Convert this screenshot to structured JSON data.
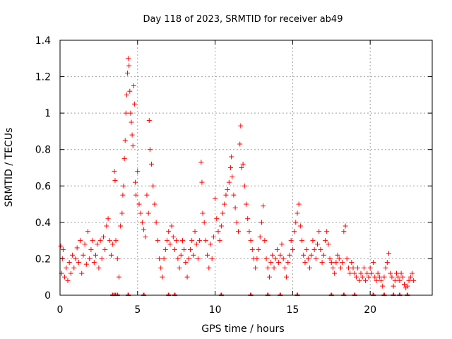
{
  "chart_data": {
    "type": "scatter",
    "title": "Day 118 of 2023, SRMTID for receiver ab49",
    "xlabel": "GPS time / hours",
    "ylabel": "SRMTID / TECUs",
    "xlim": [
      0,
      24
    ],
    "ylim": [
      0,
      1.4
    ],
    "grid": true,
    "marker": "+",
    "color": "#ff0000",
    "x_ticks": [
      0,
      5,
      10,
      15,
      20
    ],
    "x_tick_labels": [
      "0",
      "5",
      "10",
      "15",
      "20"
    ],
    "y_ticks": [
      0,
      0.2,
      0.4,
      0.6,
      0.8,
      1.0,
      1.2,
      1.4
    ],
    "y_tick_labels": [
      "0",
      "0.2",
      "0.4",
      "0.6",
      "0.8",
      "1",
      "1.2",
      "1.4"
    ],
    "series": [
      {
        "name": "SRMTID",
        "points": [
          [
            0.05,
            0.27
          ],
          [
            0.1,
            0.12
          ],
          [
            0.15,
            0.2
          ],
          [
            0.2,
            0.25
          ],
          [
            0.3,
            0.1
          ],
          [
            0.4,
            0.15
          ],
          [
            0.5,
            0.08
          ],
          [
            0.6,
            0.18
          ],
          [
            0.7,
            0.12
          ],
          [
            0.8,
            0.22
          ],
          [
            0.9,
            0.15
          ],
          [
            1.0,
            0.2
          ],
          [
            1.1,
            0.26
          ],
          [
            1.2,
            0.18
          ],
          [
            1.3,
            0.3
          ],
          [
            1.4,
            0.12
          ],
          [
            1.5,
            0.22
          ],
          [
            1.6,
            0.28
          ],
          [
            1.7,
            0.17
          ],
          [
            1.8,
            0.35
          ],
          [
            1.9,
            0.2
          ],
          [
            2.0,
            0.25
          ],
          [
            2.1,
            0.3
          ],
          [
            2.2,
            0.18
          ],
          [
            2.3,
            0.22
          ],
          [
            2.4,
            0.28
          ],
          [
            2.5,
            0.15
          ],
          [
            2.6,
            0.3
          ],
          [
            2.7,
            0.2
          ],
          [
            2.8,
            0.32
          ],
          [
            2.9,
            0.25
          ],
          [
            3.0,
            0.38
          ],
          [
            3.1,
            0.42
          ],
          [
            3.2,
            0.3
          ],
          [
            3.3,
            0.22
          ],
          [
            3.4,
            0.28
          ],
          [
            3.5,
            0.68
          ],
          [
            3.55,
            0.63
          ],
          [
            3.6,
            0.3
          ],
          [
            3.7,
            0.2
          ],
          [
            3.8,
            0.1
          ],
          [
            3.9,
            0.38
          ],
          [
            4.0,
            0.45
          ],
          [
            4.05,
            0.55
          ],
          [
            4.1,
            0.6
          ],
          [
            4.15,
            0.75
          ],
          [
            4.2,
            0.85
          ],
          [
            4.25,
            1.0
          ],
          [
            4.3,
            1.1
          ],
          [
            4.35,
            1.22
          ],
          [
            4.4,
            1.3
          ],
          [
            4.45,
            1.26
          ],
          [
            4.5,
            1.12
          ],
          [
            4.55,
            1.0
          ],
          [
            4.6,
            0.95
          ],
          [
            4.65,
            0.88
          ],
          [
            4.7,
            0.82
          ],
          [
            4.75,
            1.15
          ],
          [
            4.8,
            1.05
          ],
          [
            4.85,
            0.62
          ],
          [
            4.9,
            0.55
          ],
          [
            5.0,
            0.68
          ],
          [
            5.1,
            0.5
          ],
          [
            5.2,
            0.45
          ],
          [
            5.3,
            0.4
          ],
          [
            5.4,
            0.36
          ],
          [
            5.5,
            0.32
          ],
          [
            5.6,
            0.55
          ],
          [
            5.7,
            0.45
          ],
          [
            5.75,
            0.96
          ],
          [
            5.8,
            0.8
          ],
          [
            5.9,
            0.72
          ],
          [
            6.0,
            0.6
          ],
          [
            6.1,
            0.5
          ],
          [
            6.2,
            0.4
          ],
          [
            6.3,
            0.3
          ],
          [
            6.4,
            0.2
          ],
          [
            6.5,
            0.15
          ],
          [
            6.6,
            0.1
          ],
          [
            6.7,
            0.2
          ],
          [
            6.8,
            0.25
          ],
          [
            6.9,
            0.3
          ],
          [
            7.0,
            0.35
          ],
          [
            7.1,
            0.28
          ],
          [
            7.2,
            0.38
          ],
          [
            7.3,
            0.32
          ],
          [
            7.4,
            0.25
          ],
          [
            7.5,
            0.3
          ],
          [
            7.6,
            0.2
          ],
          [
            7.7,
            0.15
          ],
          [
            7.8,
            0.22
          ],
          [
            7.9,
            0.3
          ],
          [
            8.0,
            0.25
          ],
          [
            8.1,
            0.18
          ],
          [
            8.2,
            0.1
          ],
          [
            8.3,
            0.2
          ],
          [
            8.4,
            0.25
          ],
          [
            8.5,
            0.3
          ],
          [
            8.6,
            0.22
          ],
          [
            8.7,
            0.35
          ],
          [
            8.8,
            0.28
          ],
          [
            8.9,
            0.2
          ],
          [
            9.0,
            0.3
          ],
          [
            9.1,
            0.73
          ],
          [
            9.15,
            0.62
          ],
          [
            9.2,
            0.45
          ],
          [
            9.3,
            0.4
          ],
          [
            9.4,
            0.3
          ],
          [
            9.5,
            0.22
          ],
          [
            9.6,
            0.15
          ],
          [
            9.7,
            0.28
          ],
          [
            9.8,
            0.2
          ],
          [
            9.9,
            0.32
          ],
          [
            10.0,
            0.53
          ],
          [
            10.1,
            0.42
          ],
          [
            10.2,
            0.35
          ],
          [
            10.3,
            0.3
          ],
          [
            10.4,
            0.38
          ],
          [
            10.5,
            0.45
          ],
          [
            10.6,
            0.5
          ],
          [
            10.7,
            0.55
          ],
          [
            10.8,
            0.58
          ],
          [
            10.9,
            0.62
          ],
          [
            11.0,
            0.7
          ],
          [
            11.05,
            0.76
          ],
          [
            11.1,
            0.65
          ],
          [
            11.2,
            0.55
          ],
          [
            11.3,
            0.48
          ],
          [
            11.4,
            0.4
          ],
          [
            11.5,
            0.35
          ],
          [
            11.6,
            0.83
          ],
          [
            11.65,
            0.93
          ],
          [
            11.7,
            0.7
          ],
          [
            11.8,
            0.72
          ],
          [
            11.9,
            0.6
          ],
          [
            12.0,
            0.5
          ],
          [
            12.1,
            0.42
          ],
          [
            12.2,
            0.35
          ],
          [
            12.3,
            0.3
          ],
          [
            12.4,
            0.25
          ],
          [
            12.5,
            0.2
          ],
          [
            12.6,
            0.15
          ],
          [
            12.7,
            0.2
          ],
          [
            12.8,
            0.25
          ],
          [
            12.9,
            0.32
          ],
          [
            13.0,
            0.4
          ],
          [
            13.1,
            0.49
          ],
          [
            13.2,
            0.3
          ],
          [
            13.3,
            0.2
          ],
          [
            13.4,
            0.15
          ],
          [
            13.5,
            0.1
          ],
          [
            13.6,
            0.18
          ],
          [
            13.7,
            0.22
          ],
          [
            13.8,
            0.15
          ],
          [
            13.9,
            0.2
          ],
          [
            14.0,
            0.25
          ],
          [
            14.1,
            0.18
          ],
          [
            14.2,
            0.22
          ],
          [
            14.3,
            0.28
          ],
          [
            14.4,
            0.2
          ],
          [
            14.5,
            0.15
          ],
          [
            14.6,
            0.1
          ],
          [
            14.7,
            0.18
          ],
          [
            14.8,
            0.22
          ],
          [
            14.9,
            0.3
          ],
          [
            15.0,
            0.25
          ],
          [
            15.1,
            0.35
          ],
          [
            15.2,
            0.4
          ],
          [
            15.3,
            0.45
          ],
          [
            15.4,
            0.5
          ],
          [
            15.5,
            0.38
          ],
          [
            15.6,
            0.3
          ],
          [
            15.7,
            0.22
          ],
          [
            15.8,
            0.18
          ],
          [
            15.9,
            0.25
          ],
          [
            16.0,
            0.2
          ],
          [
            16.1,
            0.15
          ],
          [
            16.2,
            0.22
          ],
          [
            16.3,
            0.3
          ],
          [
            16.4,
            0.25
          ],
          [
            16.5,
            0.2
          ],
          [
            16.6,
            0.28
          ],
          [
            16.7,
            0.35
          ],
          [
            16.8,
            0.25
          ],
          [
            16.9,
            0.18
          ],
          [
            17.0,
            0.22
          ],
          [
            17.1,
            0.3
          ],
          [
            17.2,
            0.35
          ],
          [
            17.3,
            0.28
          ],
          [
            17.4,
            0.2
          ],
          [
            17.5,
            0.18
          ],
          [
            17.6,
            0.15
          ],
          [
            17.7,
            0.12
          ],
          [
            17.8,
            0.18
          ],
          [
            17.9,
            0.22
          ],
          [
            18.0,
            0.2
          ],
          [
            18.1,
            0.15
          ],
          [
            18.2,
            0.18
          ],
          [
            18.3,
            0.35
          ],
          [
            18.4,
            0.38
          ],
          [
            18.5,
            0.2
          ],
          [
            18.6,
            0.15
          ],
          [
            18.7,
            0.12
          ],
          [
            18.8,
            0.18
          ],
          [
            18.9,
            0.15
          ],
          [
            19.0,
            0.12
          ],
          [
            19.1,
            0.1
          ],
          [
            19.2,
            0.15
          ],
          [
            19.3,
            0.08
          ],
          [
            19.4,
            0.12
          ],
          [
            19.5,
            0.1
          ],
          [
            19.6,
            0.15
          ],
          [
            19.7,
            0.08
          ],
          [
            19.8,
            0.12
          ],
          [
            19.9,
            0.1
          ],
          [
            20.0,
            0.15
          ],
          [
            20.1,
            0.12
          ],
          [
            20.2,
            0.18
          ],
          [
            20.3,
            0.1
          ],
          [
            20.4,
            0.08
          ],
          [
            20.5,
            0.12
          ],
          [
            20.6,
            0.1
          ],
          [
            20.7,
            0.08
          ],
          [
            20.8,
            0.05
          ],
          [
            20.9,
            0.1
          ],
          [
            21.0,
            0.15
          ],
          [
            21.1,
            0.18
          ],
          [
            21.2,
            0.23
          ],
          [
            21.3,
            0.12
          ],
          [
            21.4,
            0.1
          ],
          [
            21.5,
            0.05
          ],
          [
            21.6,
            0.08
          ],
          [
            21.7,
            0.12
          ],
          [
            21.8,
            0.1
          ],
          [
            21.9,
            0.08
          ],
          [
            22.0,
            0.12
          ],
          [
            22.1,
            0.1
          ],
          [
            22.2,
            0.06
          ],
          [
            22.3,
            0.04
          ],
          [
            22.4,
            0.05
          ],
          [
            22.5,
            0.08
          ],
          [
            22.6,
            0.1
          ],
          [
            22.7,
            0.12
          ],
          [
            22.8,
            0.08
          ]
        ]
      }
    ],
    "zero_band_x": [
      3.4,
      3.55,
      3.7,
      4.4,
      5.4,
      7.0,
      7.4,
      10.4,
      12.3,
      13.4,
      14.2,
      15.3,
      17.5,
      18.3,
      19.0,
      20.2,
      20.9,
      21.5,
      21.9,
      22.4
    ]
  }
}
